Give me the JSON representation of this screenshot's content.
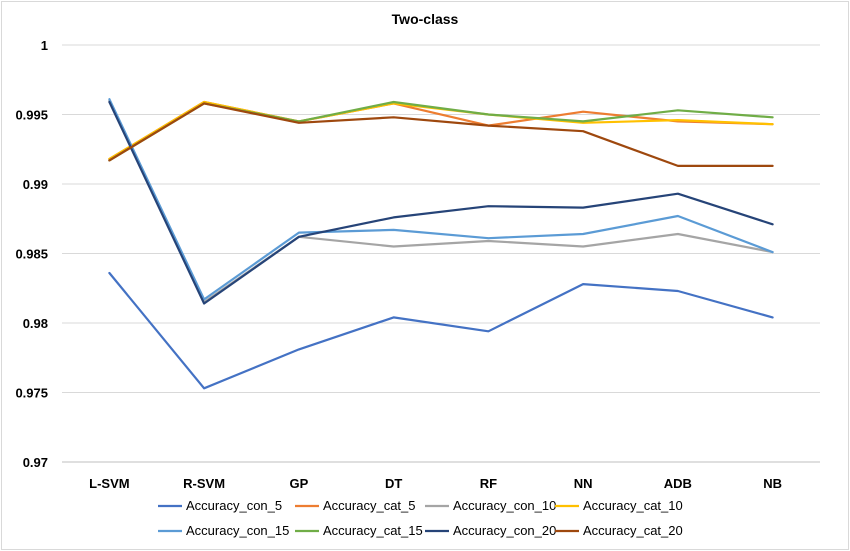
{
  "chart_data": {
    "type": "line",
    "title": "Two-class",
    "xlabel": "",
    "ylabel": "",
    "ylim": [
      0.97,
      1.0
    ],
    "yticks": [
      "0.97",
      "0.975",
      "0.98",
      "0.985",
      "0.99",
      "0.995",
      "1"
    ],
    "grid": true,
    "legend_position": "bottom",
    "categories": [
      "L-SVM",
      "R-SVM",
      "GP",
      "DT",
      "RF",
      "NN",
      "ADB",
      "NB"
    ],
    "series": [
      {
        "name": "Accuracy_con_5",
        "color": "#4472c4",
        "values": [
          0.9836,
          0.9753,
          0.9781,
          0.9804,
          0.9794,
          0.9828,
          0.9823,
          0.9804
        ]
      },
      {
        "name": "Accuracy_cat_5",
        "color": "#ed7d31",
        "values": [
          0.9918,
          0.9959,
          0.9945,
          0.9958,
          0.9942,
          0.9952,
          0.9945,
          0.9943
        ]
      },
      {
        "name": "Accuracy_con_10",
        "color": "#a5a5a5",
        "values": [
          0.996,
          0.9815,
          0.9862,
          0.9855,
          0.9859,
          0.9855,
          0.9864,
          0.9851
        ]
      },
      {
        "name": "Accuracy_cat_10",
        "color": "#ffc000",
        "values": [
          0.9918,
          0.9959,
          0.9945,
          0.9958,
          0.995,
          0.9944,
          0.9946,
          0.9943
        ]
      },
      {
        "name": "Accuracy_con_15",
        "color": "#5b9bd5",
        "values": [
          0.9961,
          0.9817,
          0.9865,
          0.9867,
          0.9861,
          0.9864,
          0.9877,
          0.9851
        ]
      },
      {
        "name": "Accuracy_cat_15",
        "color": "#70ad47",
        "values": [
          0.9917,
          0.9958,
          0.9945,
          0.9959,
          0.995,
          0.9945,
          0.9953,
          0.9948
        ]
      },
      {
        "name": "Accuracy_con_20",
        "color": "#264478",
        "values": [
          0.9959,
          0.9814,
          0.9862,
          0.9876,
          0.9884,
          0.9883,
          0.9893,
          0.9871
        ]
      },
      {
        "name": "Accuracy_cat_20",
        "color": "#9e480e",
        "values": [
          0.9917,
          0.9958,
          0.9944,
          0.9948,
          0.9942,
          0.9938,
          0.9913,
          0.9913
        ]
      }
    ]
  }
}
